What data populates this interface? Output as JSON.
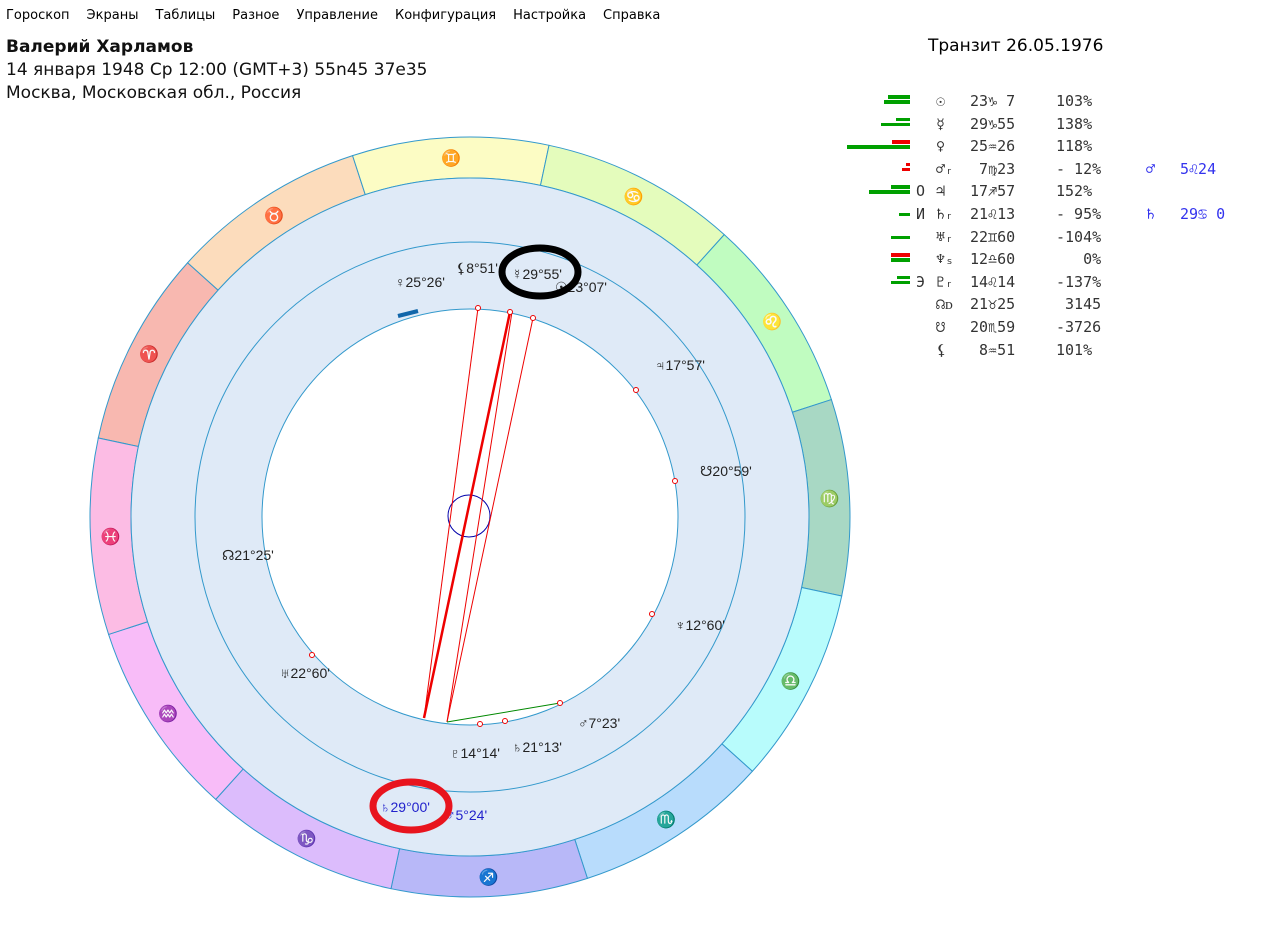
{
  "menu": [
    "Гороскоп",
    "Экраны",
    "Таблицы",
    "Разное",
    "Управление",
    "Конфигурация",
    "Настройка",
    "Справка"
  ],
  "header": {
    "name": "Валерий Харламов",
    "datetime": "14 января 1948  Ср  12:00 (GMT+3) 55n45  37e35",
    "place": "Москва, Московская обл., Россия",
    "transit": "Транзит 26.05.1976"
  },
  "table": [
    {
      "planet": "☉",
      "pos": "23♑ 7",
      "pct": "103%",
      "mark": "",
      "bars": [
        {
          "w": 22,
          "c": "#00a000"
        },
        {
          "w": 26,
          "c": "#00a000"
        }
      ]
    },
    {
      "planet": "☿",
      "pos": "29♑55",
      "pct": "138%",
      "mark": "",
      "bars": [
        {
          "w": 14,
          "c": "#00a000"
        },
        {
          "w": 29,
          "c": "#00a000"
        }
      ]
    },
    {
      "planet": "♀",
      "pos": "25♒26",
      "pct": "118%",
      "mark": "",
      "bars": [
        {
          "w": 18,
          "c": "#ee0000"
        },
        {
          "w": 63,
          "c": "#00a000"
        }
      ]
    },
    {
      "planet": "♂ᵣ",
      "pos": " 7♍23",
      "pct": "- 12%",
      "mark": "",
      "bars": [
        {
          "w": 4,
          "c": "#ee0000"
        },
        {
          "w": 8,
          "c": "#ee0000"
        }
      ],
      "transit": "♂",
      "transit_val": "5♌24"
    },
    {
      "planet": "♃",
      "pos": "17♐57",
      "pct": "152%",
      "mark": "O",
      "bars": [
        {
          "w": 19,
          "c": "#00a000"
        },
        {
          "w": 41,
          "c": "#00a000"
        }
      ]
    },
    {
      "planet": "♄ᵣ",
      "pos": "21♌13",
      "pct": "- 95%",
      "mark": "И",
      "bars": [
        {
          "w": 0,
          "c": "#00a000"
        },
        {
          "w": 11,
          "c": "#00a000"
        }
      ],
      "transit": "♄",
      "transit_val": "29♋ 0"
    },
    {
      "planet": "♅ᵣ",
      "pos": "22♊60",
      "pct": "-104%",
      "mark": "",
      "bars": [
        {
          "w": 0,
          "c": "#00a000"
        },
        {
          "w": 19,
          "c": "#00a000"
        }
      ]
    },
    {
      "planet": "♆ₛ",
      "pos": "12♎60",
      "pct": "   0%",
      "mark": "",
      "bars": [
        {
          "w": 19,
          "c": "#ee0000"
        },
        {
          "w": 19,
          "c": "#00a000"
        }
      ]
    },
    {
      "planet": "♇ᵣ",
      "pos": "14♌14",
      "pct": "-137%",
      "mark": "Э",
      "bars": [
        {
          "w": 13,
          "c": "#00a000"
        },
        {
          "w": 19,
          "c": "#00a000"
        }
      ]
    },
    {
      "planet": "☊ᴅ",
      "pos": "21♉25",
      "pct": " 3145",
      "mark": "",
      "bars": []
    },
    {
      "planet": "☋",
      "pos": "20♏59",
      "pct": "-3726",
      "mark": "",
      "bars": []
    },
    {
      "planet": "⚸",
      "pos": " 8♒51",
      "pct": "101%",
      "mark": "",
      "bars": []
    }
  ],
  "zodiac": [
    {
      "sign": "♈",
      "color": "#f8b8b0"
    },
    {
      "sign": "♉",
      "color": "#fcdcbc"
    },
    {
      "sign": "♊",
      "color": "#fcfcc4"
    },
    {
      "sign": "♋",
      "color": "#e4fcbc"
    },
    {
      "sign": "♌",
      "color": "#c0fcc0"
    },
    {
      "sign": "♍",
      "color": "#a8d8c4"
    },
    {
      "sign": "♎",
      "color": "#b8fcfc"
    },
    {
      "sign": "♏",
      "color": "#b8dcfc"
    },
    {
      "sign": "♐",
      "color": "#b8b8f8"
    },
    {
      "sign": "♑",
      "color": "#dcbcfc"
    },
    {
      "sign": "♒",
      "color": "#f8bcf8"
    },
    {
      "sign": "♓",
      "color": "#fcbce4"
    }
  ],
  "chart_labels": {
    "venus": "♀25°26'",
    "lilith": "⚸8°51'",
    "mercury": "☿29°55'",
    "sun": "☉23°07'",
    "jupiter": "♃17°57'",
    "southnode": "☋20°59'",
    "neptune": "♆12°60'",
    "mars": "♂7°23'",
    "saturn": "♄21°13'",
    "pluto": "♇14°14'",
    "uranus": "♅22°60'",
    "northnode": "☊21°25'",
    "t_saturn": "♄29°00'",
    "t_mars": "♂5°24'"
  }
}
